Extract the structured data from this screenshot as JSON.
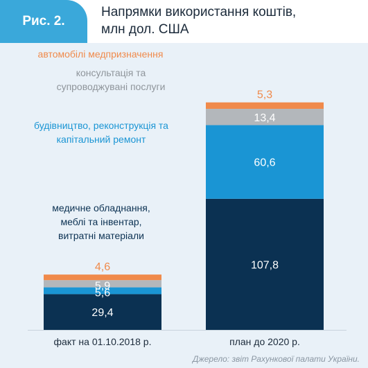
{
  "header": {
    "figure_label": "Рис. 2.",
    "title_line1": "Напрямки використання коштів,",
    "title_line2": "млн дол. США"
  },
  "source": "Джерело: звіт Рахункової палати України.",
  "colors": {
    "background": "#e9f1f8",
    "accent": "#3aa8da",
    "medical": "#0b3152",
    "construction": "#1a95d4",
    "consulting": "#b3b7bb",
    "vehicles": "#f08a4b"
  },
  "chart_data": {
    "type": "bar",
    "stacked": true,
    "categories": [
      "факт на 01.10.2018 р.",
      "план до 2020 р."
    ],
    "series": [
      {
        "name": "медичне обладнання, меблі та інвентар, витратні матеріали",
        "values": [
          29.4,
          107.8
        ],
        "color": "#0b3152",
        "label_color": "#ffffff"
      },
      {
        "name": "будівництво, реконструкція та капітальний ремонт",
        "values": [
          5.6,
          60.6
        ],
        "color": "#1a95d4",
        "label_color": "#ffffff"
      },
      {
        "name": "консультація та супроводжувані послуги",
        "values": [
          5.9,
          13.4
        ],
        "color": "#b3b7bb",
        "label_color": "#ffffff"
      },
      {
        "name": "автомобілі медпризначення",
        "values": [
          4.6,
          5.3
        ],
        "color": "#f08a4b",
        "label_color": "#f08a4b"
      }
    ],
    "legend_lines": [
      {
        "lines": [
          "автомобілі медпризначення"
        ],
        "color": "#f08a4b"
      },
      {
        "lines": [
          "консультація та",
          "супроводжувані послуги"
        ],
        "color": "#8f959b"
      },
      {
        "lines": [
          "будівництво, реконструкція та",
          "капітальний ремонт"
        ],
        "color": "#1a95d4"
      },
      {
        "lines": [
          "медичне обладнання,",
          "меблі та інвентар,",
          "витратні матеріали"
        ],
        "color": "#0b3152"
      }
    ],
    "data_labels": {
      "medical": [
        "29,4",
        "107,8"
      ],
      "construction": [
        "5,6",
        "60,6"
      ],
      "consulting": [
        "5,9",
        "13,4"
      ],
      "vehicles": [
        "4,6",
        "5,3"
      ]
    }
  }
}
